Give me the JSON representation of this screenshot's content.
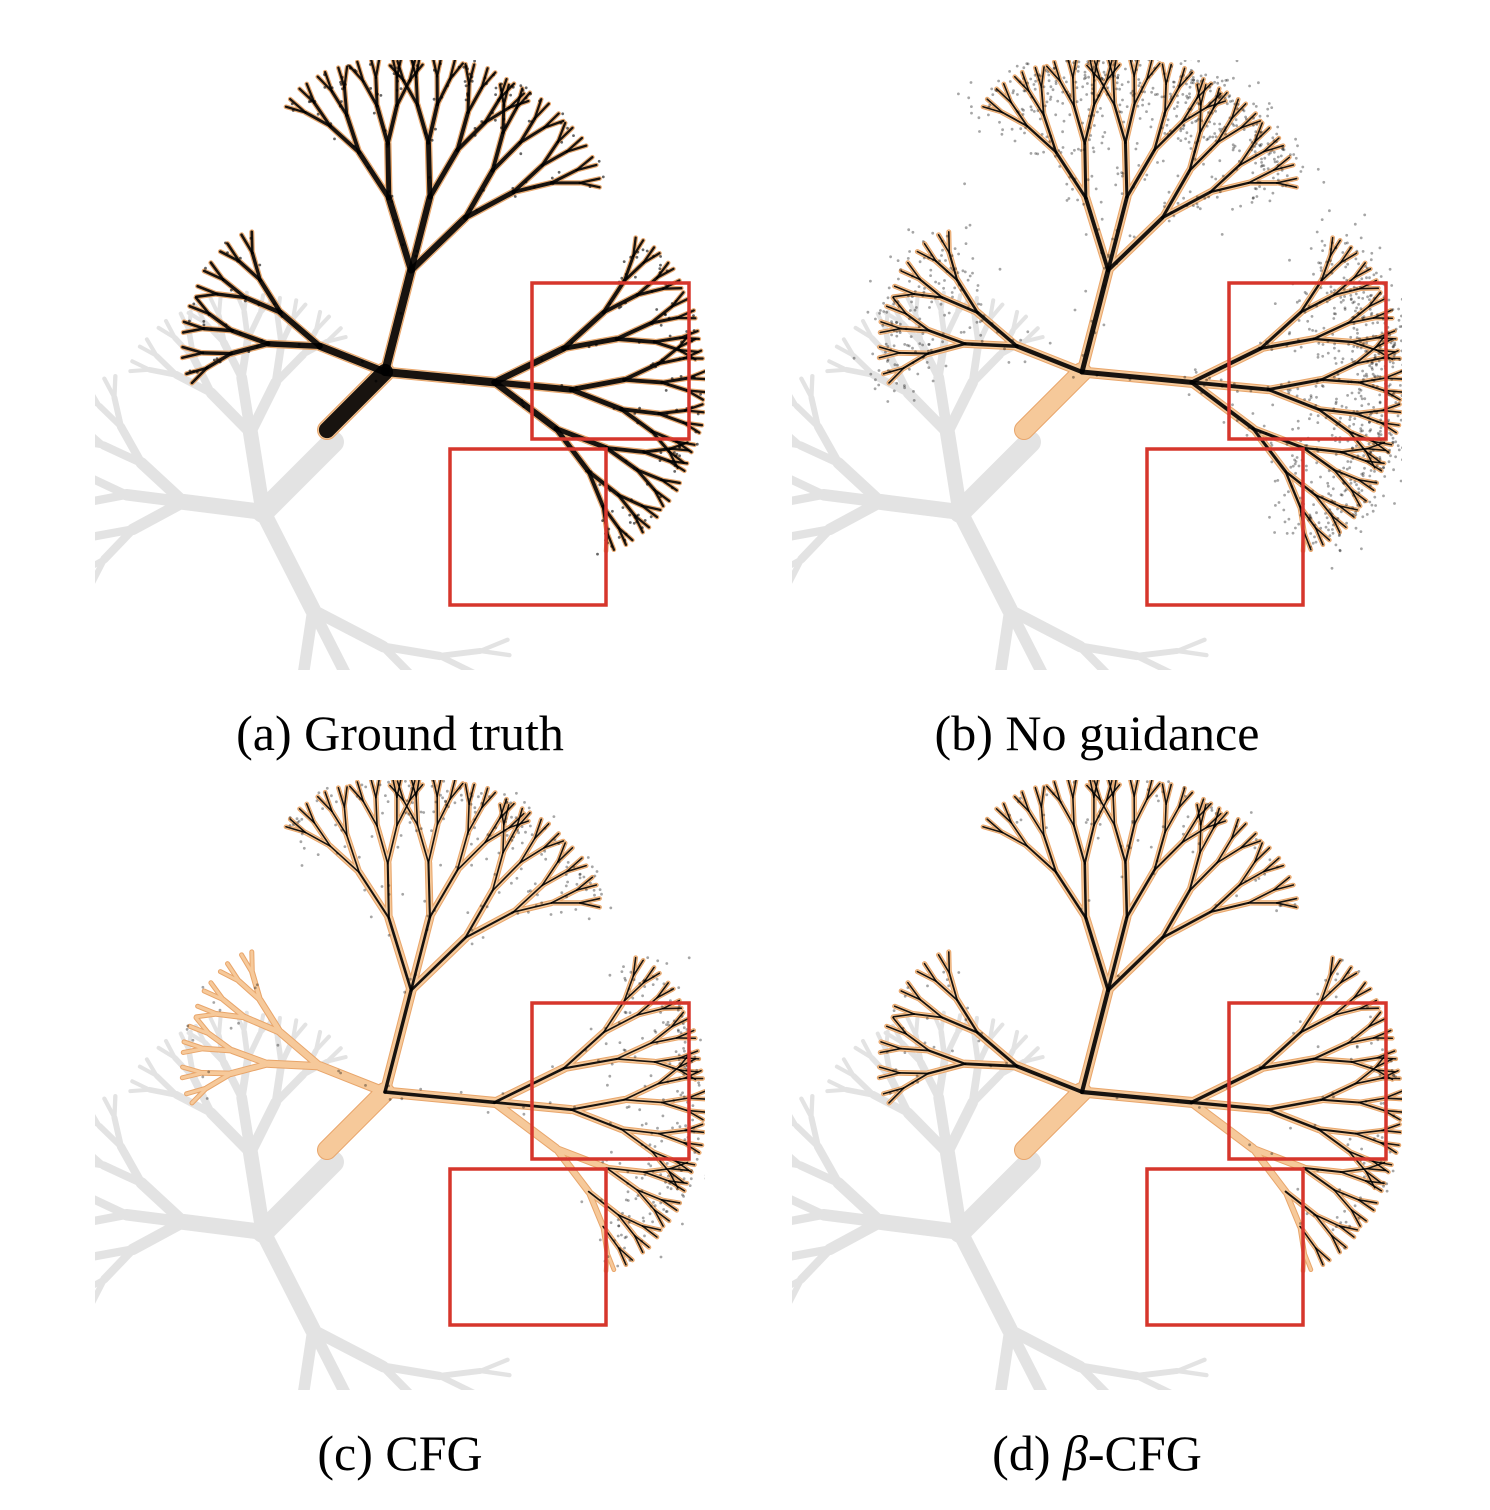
{
  "figure": {
    "panels": [
      {
        "id": "a",
        "prefix": "(a) ",
        "beta": "",
        "suffix": "Ground truth",
        "show_base": true,
        "orange_prune": "",
        "noise": "none",
        "black_density": 1.0
      },
      {
        "id": "b",
        "prefix": "(b) ",
        "beta": "",
        "suffix": "No guidance",
        "show_base": false,
        "orange_prune": "",
        "noise": "heavy",
        "black_density": 1.0
      },
      {
        "id": "c",
        "prefix": "(c) ",
        "beta": "",
        "suffix": "CFG",
        "show_base": false,
        "orange_prune": "left,bottom",
        "noise": "light",
        "black_density": 0.7
      },
      {
        "id": "d",
        "prefix": "(d) ",
        "beta": "β",
        "suffix": "-CFG",
        "show_base": false,
        "orange_prune": "bottom",
        "noise": "minimal",
        "black_density": 0.85
      }
    ],
    "colors": {
      "gray_tree": "#e3e3e3",
      "orange_tree": "#f6c99a",
      "orange_edge": "#e8a56a",
      "samples": "#000000",
      "highlight_box": "#d6362c"
    }
  }
}
